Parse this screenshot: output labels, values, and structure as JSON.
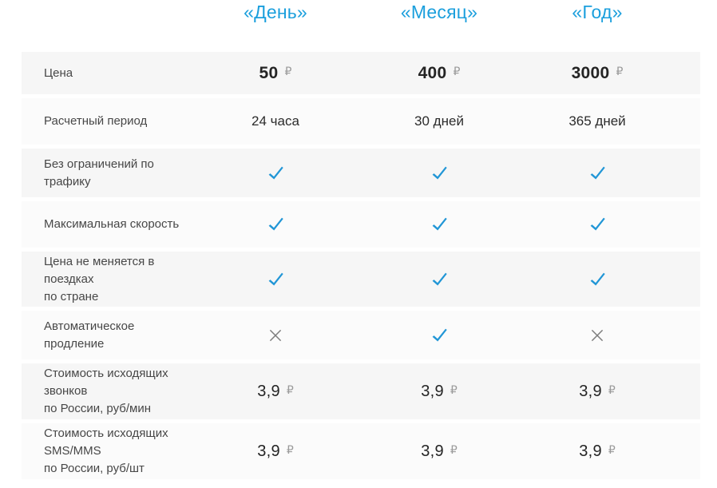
{
  "table": {
    "currency_symbol": "₽",
    "columns": [
      {
        "label": "«День»"
      },
      {
        "label": "«Месяц»"
      },
      {
        "label": "«Год»"
      }
    ],
    "rows": [
      {
        "label_lines": [
          "Цена"
        ],
        "type": "price",
        "bold": true,
        "values": [
          "50",
          "400",
          "3000"
        ]
      },
      {
        "label_lines": [
          "Расчетный период"
        ],
        "type": "text",
        "values": [
          "24 часа",
          "30 дней",
          "365 дней"
        ]
      },
      {
        "label_lines": [
          "Без ограничений по трафику"
        ],
        "type": "bool",
        "values": [
          true,
          true,
          true
        ]
      },
      {
        "label_lines": [
          "Максимальная скорость"
        ],
        "type": "bool",
        "values": [
          true,
          true,
          true
        ]
      },
      {
        "label_lines": [
          "Цена не меняется в поездках",
          "по стране"
        ],
        "type": "bool",
        "values": [
          true,
          true,
          true
        ]
      },
      {
        "label_lines": [
          "Автоматическое продление"
        ],
        "type": "bool",
        "values": [
          false,
          true,
          false
        ]
      },
      {
        "label_lines": [
          "Стоимость исходящих звонков",
          "по России, руб/мин"
        ],
        "type": "price",
        "bold": false,
        "values": [
          "3,9",
          "3,9",
          "3,9"
        ]
      },
      {
        "label_lines": [
          "Стоимость исходящих SMS/MMS",
          "по России, руб/шт"
        ],
        "type": "price",
        "bold": false,
        "values": [
          "3,9",
          "3,9",
          "3,9"
        ]
      }
    ],
    "colors": {
      "header_blue": "#1b9fdd",
      "check_blue": "#2196d6",
      "cross_gray": "#7d7d7d",
      "row_shade_dark": "#f6f6f6",
      "row_shade_light": "#fbfbfb",
      "label_text": "#474747",
      "value_text": "#242424",
      "ruble_gray": "#9a9a9a"
    }
  }
}
